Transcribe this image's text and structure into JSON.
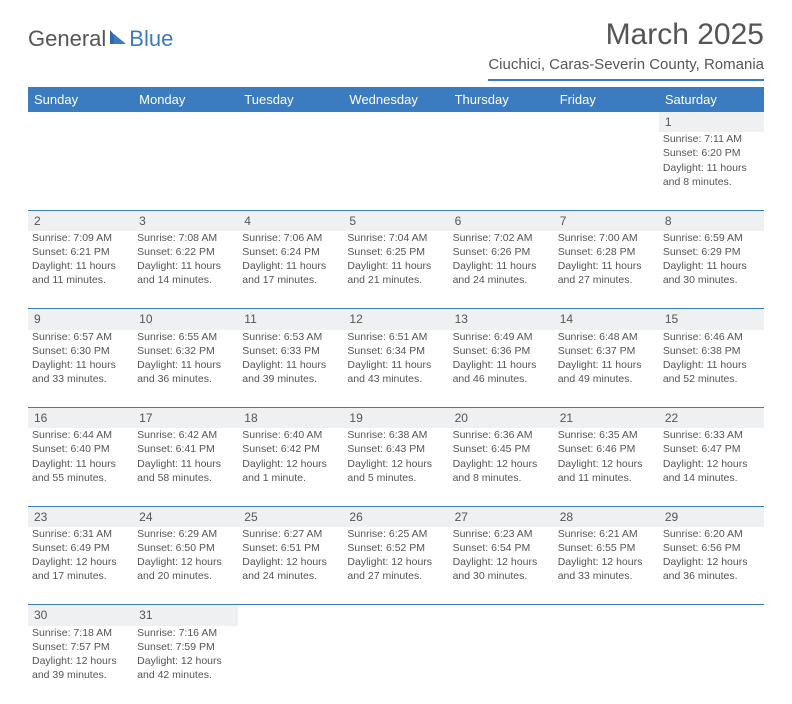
{
  "logo": {
    "part1": "General",
    "part2": "Blue"
  },
  "title": "March 2025",
  "location": "Ciuchici, Caras-Severin County, Romania",
  "colors": {
    "accent": "#3b7bbf",
    "header_bg": "#3b7bbf",
    "daynum_bg": "#eef0f1",
    "text": "#555555"
  },
  "weekdays": [
    "Sunday",
    "Monday",
    "Tuesday",
    "Wednesday",
    "Thursday",
    "Friday",
    "Saturday"
  ],
  "weeks": [
    [
      null,
      null,
      null,
      null,
      null,
      null,
      {
        "n": "1",
        "sr": "Sunrise: 7:11 AM",
        "ss": "Sunset: 6:20 PM",
        "dl1": "Daylight: 11 hours",
        "dl2": "and 8 minutes."
      }
    ],
    [
      {
        "n": "2",
        "sr": "Sunrise: 7:09 AM",
        "ss": "Sunset: 6:21 PM",
        "dl1": "Daylight: 11 hours",
        "dl2": "and 11 minutes."
      },
      {
        "n": "3",
        "sr": "Sunrise: 7:08 AM",
        "ss": "Sunset: 6:22 PM",
        "dl1": "Daylight: 11 hours",
        "dl2": "and 14 minutes."
      },
      {
        "n": "4",
        "sr": "Sunrise: 7:06 AM",
        "ss": "Sunset: 6:24 PM",
        "dl1": "Daylight: 11 hours",
        "dl2": "and 17 minutes."
      },
      {
        "n": "5",
        "sr": "Sunrise: 7:04 AM",
        "ss": "Sunset: 6:25 PM",
        "dl1": "Daylight: 11 hours",
        "dl2": "and 21 minutes."
      },
      {
        "n": "6",
        "sr": "Sunrise: 7:02 AM",
        "ss": "Sunset: 6:26 PM",
        "dl1": "Daylight: 11 hours",
        "dl2": "and 24 minutes."
      },
      {
        "n": "7",
        "sr": "Sunrise: 7:00 AM",
        "ss": "Sunset: 6:28 PM",
        "dl1": "Daylight: 11 hours",
        "dl2": "and 27 minutes."
      },
      {
        "n": "8",
        "sr": "Sunrise: 6:59 AM",
        "ss": "Sunset: 6:29 PM",
        "dl1": "Daylight: 11 hours",
        "dl2": "and 30 minutes."
      }
    ],
    [
      {
        "n": "9",
        "sr": "Sunrise: 6:57 AM",
        "ss": "Sunset: 6:30 PM",
        "dl1": "Daylight: 11 hours",
        "dl2": "and 33 minutes."
      },
      {
        "n": "10",
        "sr": "Sunrise: 6:55 AM",
        "ss": "Sunset: 6:32 PM",
        "dl1": "Daylight: 11 hours",
        "dl2": "and 36 minutes."
      },
      {
        "n": "11",
        "sr": "Sunrise: 6:53 AM",
        "ss": "Sunset: 6:33 PM",
        "dl1": "Daylight: 11 hours",
        "dl2": "and 39 minutes."
      },
      {
        "n": "12",
        "sr": "Sunrise: 6:51 AM",
        "ss": "Sunset: 6:34 PM",
        "dl1": "Daylight: 11 hours",
        "dl2": "and 43 minutes."
      },
      {
        "n": "13",
        "sr": "Sunrise: 6:49 AM",
        "ss": "Sunset: 6:36 PM",
        "dl1": "Daylight: 11 hours",
        "dl2": "and 46 minutes."
      },
      {
        "n": "14",
        "sr": "Sunrise: 6:48 AM",
        "ss": "Sunset: 6:37 PM",
        "dl1": "Daylight: 11 hours",
        "dl2": "and 49 minutes."
      },
      {
        "n": "15",
        "sr": "Sunrise: 6:46 AM",
        "ss": "Sunset: 6:38 PM",
        "dl1": "Daylight: 11 hours",
        "dl2": "and 52 minutes."
      }
    ],
    [
      {
        "n": "16",
        "sr": "Sunrise: 6:44 AM",
        "ss": "Sunset: 6:40 PM",
        "dl1": "Daylight: 11 hours",
        "dl2": "and 55 minutes."
      },
      {
        "n": "17",
        "sr": "Sunrise: 6:42 AM",
        "ss": "Sunset: 6:41 PM",
        "dl1": "Daylight: 11 hours",
        "dl2": "and 58 minutes."
      },
      {
        "n": "18",
        "sr": "Sunrise: 6:40 AM",
        "ss": "Sunset: 6:42 PM",
        "dl1": "Daylight: 12 hours",
        "dl2": "and 1 minute."
      },
      {
        "n": "19",
        "sr": "Sunrise: 6:38 AM",
        "ss": "Sunset: 6:43 PM",
        "dl1": "Daylight: 12 hours",
        "dl2": "and 5 minutes."
      },
      {
        "n": "20",
        "sr": "Sunrise: 6:36 AM",
        "ss": "Sunset: 6:45 PM",
        "dl1": "Daylight: 12 hours",
        "dl2": "and 8 minutes."
      },
      {
        "n": "21",
        "sr": "Sunrise: 6:35 AM",
        "ss": "Sunset: 6:46 PM",
        "dl1": "Daylight: 12 hours",
        "dl2": "and 11 minutes."
      },
      {
        "n": "22",
        "sr": "Sunrise: 6:33 AM",
        "ss": "Sunset: 6:47 PM",
        "dl1": "Daylight: 12 hours",
        "dl2": "and 14 minutes."
      }
    ],
    [
      {
        "n": "23",
        "sr": "Sunrise: 6:31 AM",
        "ss": "Sunset: 6:49 PM",
        "dl1": "Daylight: 12 hours",
        "dl2": "and 17 minutes."
      },
      {
        "n": "24",
        "sr": "Sunrise: 6:29 AM",
        "ss": "Sunset: 6:50 PM",
        "dl1": "Daylight: 12 hours",
        "dl2": "and 20 minutes."
      },
      {
        "n": "25",
        "sr": "Sunrise: 6:27 AM",
        "ss": "Sunset: 6:51 PM",
        "dl1": "Daylight: 12 hours",
        "dl2": "and 24 minutes."
      },
      {
        "n": "26",
        "sr": "Sunrise: 6:25 AM",
        "ss": "Sunset: 6:52 PM",
        "dl1": "Daylight: 12 hours",
        "dl2": "and 27 minutes."
      },
      {
        "n": "27",
        "sr": "Sunrise: 6:23 AM",
        "ss": "Sunset: 6:54 PM",
        "dl1": "Daylight: 12 hours",
        "dl2": "and 30 minutes."
      },
      {
        "n": "28",
        "sr": "Sunrise: 6:21 AM",
        "ss": "Sunset: 6:55 PM",
        "dl1": "Daylight: 12 hours",
        "dl2": "and 33 minutes."
      },
      {
        "n": "29",
        "sr": "Sunrise: 6:20 AM",
        "ss": "Sunset: 6:56 PM",
        "dl1": "Daylight: 12 hours",
        "dl2": "and 36 minutes."
      }
    ],
    [
      {
        "n": "30",
        "sr": "Sunrise: 7:18 AM",
        "ss": "Sunset: 7:57 PM",
        "dl1": "Daylight: 12 hours",
        "dl2": "and 39 minutes."
      },
      {
        "n": "31",
        "sr": "Sunrise: 7:16 AM",
        "ss": "Sunset: 7:59 PM",
        "dl1": "Daylight: 12 hours",
        "dl2": "and 42 minutes."
      },
      null,
      null,
      null,
      null,
      null
    ]
  ]
}
